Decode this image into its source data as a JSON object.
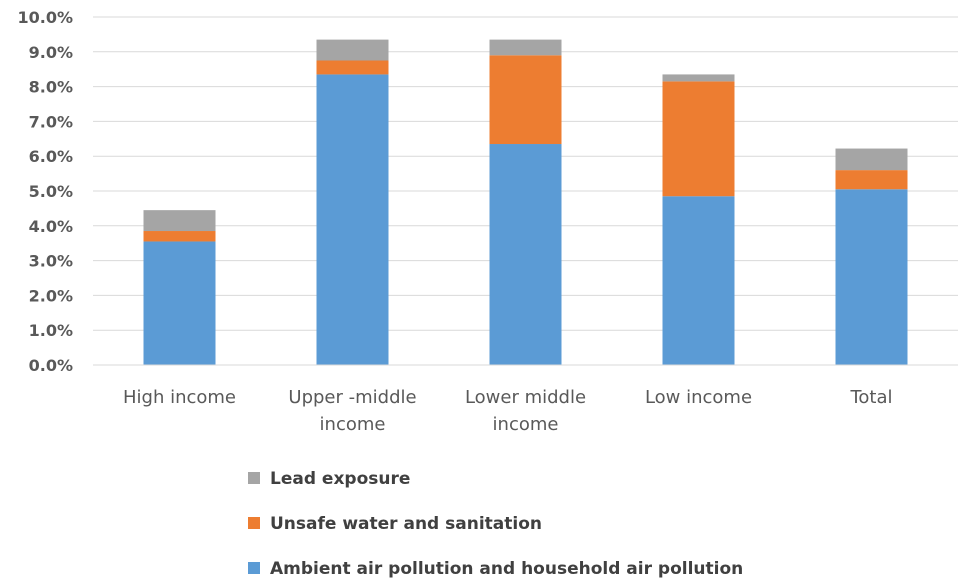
{
  "chart_data": {
    "type": "bar",
    "stacked": true,
    "categories": [
      [
        "High income"
      ],
      [
        "Upper -middle",
        "income"
      ],
      [
        "Lower middle",
        "income"
      ],
      [
        "Low income"
      ],
      [
        "Total"
      ]
    ],
    "series": [
      {
        "name": "Ambient air pollution and household air pollution",
        "color": "#5B9BD5",
        "values": [
          3.55,
          8.35,
          6.35,
          4.85,
          5.05
        ]
      },
      {
        "name": "Unsafe water and sanitation",
        "color": "#ED7D31",
        "values": [
          0.3,
          0.4,
          2.55,
          3.3,
          0.55
        ]
      },
      {
        "name": "Lead exposure",
        "color": "#A5A5A5",
        "values": [
          0.6,
          0.6,
          0.45,
          0.2,
          0.62
        ]
      }
    ],
    "yticks": [
      "0.0%",
      "1.0%",
      "2.0%",
      "3.0%",
      "4.0%",
      "5.0%",
      "6.0%",
      "7.0%",
      "8.0%",
      "9.0%",
      "10.0%"
    ],
    "ylim": [
      0,
      10
    ],
    "grid": true,
    "gridColor": "#D9D9D9",
    "legend": {
      "position": "bottom",
      "order": [
        "Lead exposure",
        "Unsafe water and sanitation",
        "Ambient air pollution and household air pollution"
      ]
    }
  }
}
